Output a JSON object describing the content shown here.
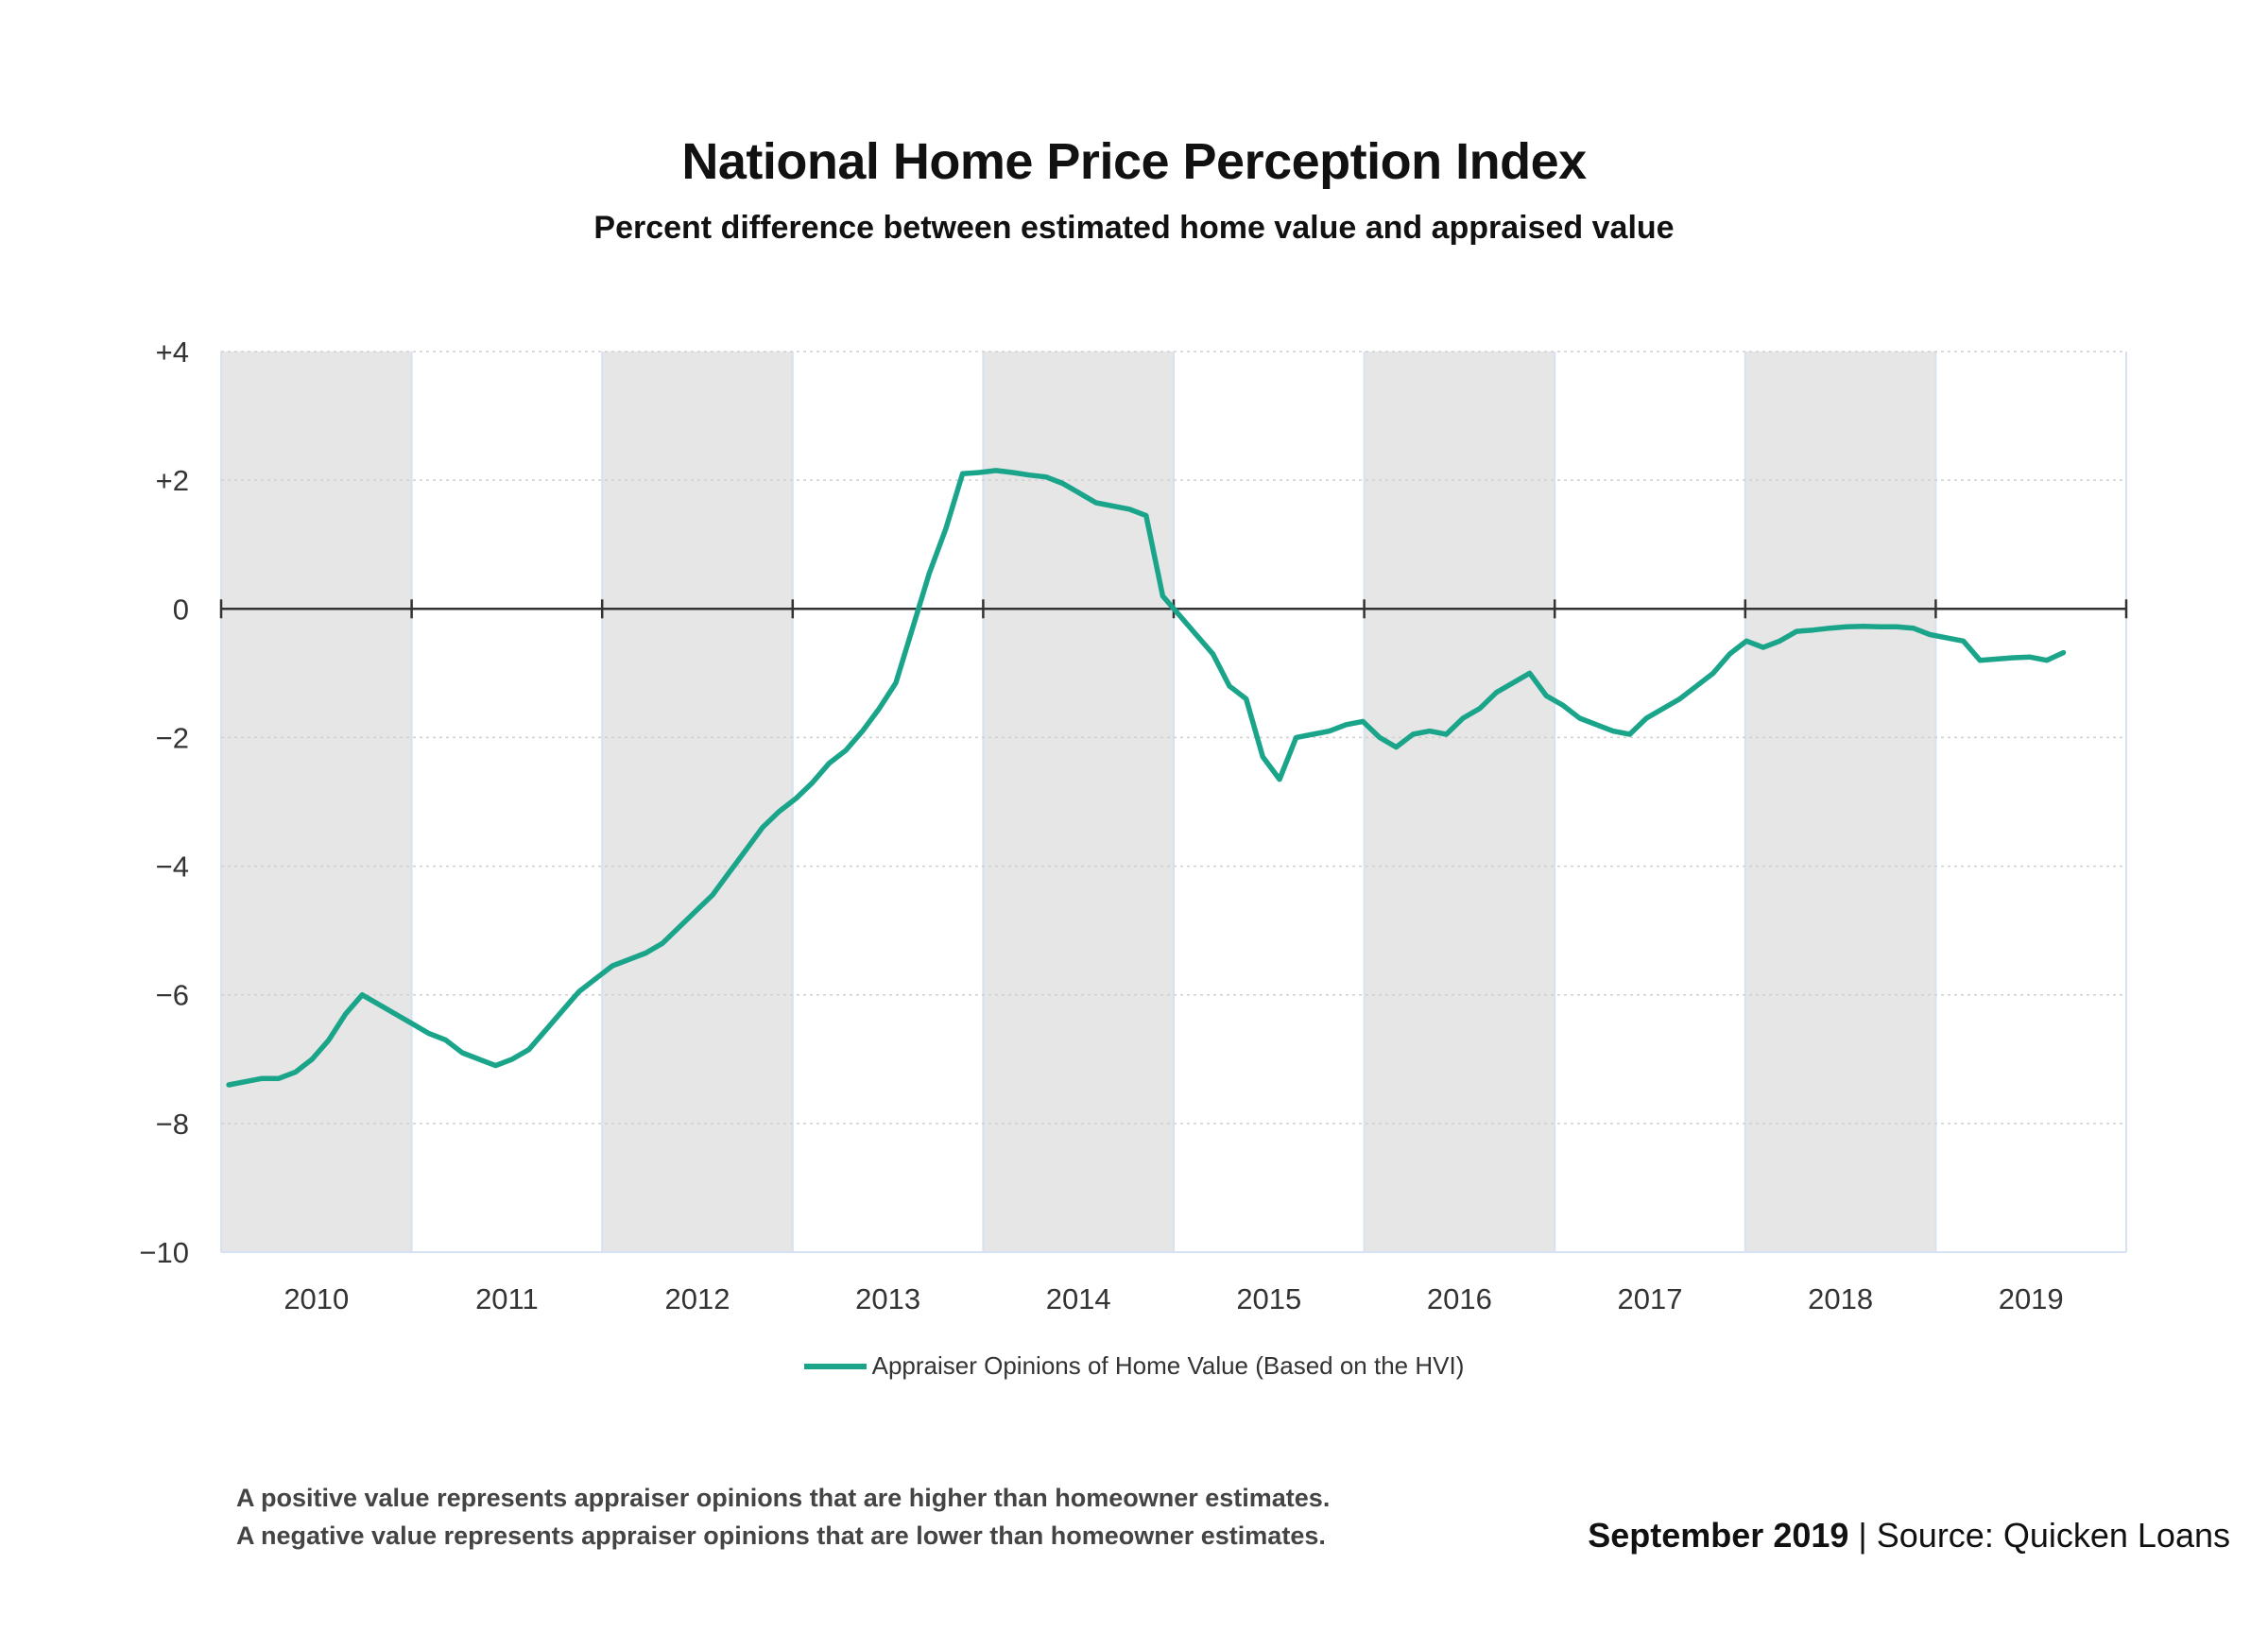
{
  "title": "National Home Price Perception Index",
  "subtitle": "Percent difference between estimated home value and appraised value",
  "legend_label": "Appraiser Opinions of Home Value (Based on the HVI)",
  "notes": [
    "A positive value represents appraiser opinions that are higher than homeowner estimates.",
    "A negative value represents appraiser opinions that are lower than homeowner estimates."
  ],
  "footer": {
    "date": "September 2019",
    "separator": " | ",
    "source": "Source: Quicken Loans"
  },
  "colors": {
    "line": "#1aa58a",
    "shade": "#e6e6e6",
    "zero_line": "#333333",
    "grid": "#cfcfcf"
  },
  "chart_data": {
    "type": "line",
    "title": "National Home Price Perception Index",
    "subtitle": "Percent difference between estimated home value and appraised value",
    "xlabel": "",
    "ylabel": "",
    "ylim": [
      -10,
      4
    ],
    "xlim": [
      2009.5,
      2019.5
    ],
    "y_ticks": [
      4,
      2,
      0,
      -2,
      -4,
      -6,
      -8,
      -10
    ],
    "y_tick_labels": [
      "+4",
      "+2",
      "0",
      "−2",
      "−4",
      "−6",
      "−8",
      "−10"
    ],
    "x_tick_labels": [
      "2010",
      "2011",
      "2012",
      "2013",
      "2014",
      "2015",
      "2016",
      "2017",
      "2018",
      "2019"
    ],
    "shaded_years": [
      "2010",
      "2012",
      "2014",
      "2016",
      "2018"
    ],
    "grid": true,
    "legend_position": "bottom",
    "series": [
      {
        "name": "Appraiser Opinions of Home Value (Based on the HVI)",
        "values": [
          -7.4,
          -7.35,
          -7.3,
          -7.3,
          -7.2,
          -7.0,
          -6.7,
          -6.3,
          -6.0,
          -6.15,
          -6.3,
          -6.45,
          -6.6,
          -6.7,
          -6.9,
          -7.0,
          -7.1,
          -7.0,
          -6.85,
          -6.55,
          -6.25,
          -5.95,
          -5.75,
          -5.55,
          -5.45,
          -5.35,
          -5.2,
          -4.95,
          -4.7,
          -4.45,
          -4.1,
          -3.75,
          -3.4,
          -3.15,
          -2.95,
          -2.7,
          -2.4,
          -2.2,
          -1.9,
          -1.55,
          -1.15,
          -0.3,
          0.55,
          1.25,
          2.1,
          2.12,
          2.15,
          2.12,
          2.08,
          2.05,
          1.95,
          1.8,
          1.65,
          1.6,
          1.55,
          1.45,
          0.2,
          -0.1,
          -0.4,
          -0.7,
          -1.2,
          -1.4,
          -2.3,
          -2.65,
          -2.0,
          -1.95,
          -1.9,
          -1.8,
          -1.75,
          -2.0,
          -2.15,
          -1.95,
          -1.9,
          -1.95,
          -1.7,
          -1.55,
          -1.3,
          -1.15,
          -1.0,
          -1.35,
          -1.5,
          -1.7,
          -1.8,
          -1.9,
          -1.95,
          -1.7,
          -1.55,
          -1.4,
          -1.2,
          -1.0,
          -0.7,
          -0.5,
          -0.6,
          -0.5,
          -0.35,
          -0.33,
          -0.3,
          -0.28,
          -0.27,
          -0.28,
          -0.28,
          -0.3,
          -0.4,
          -0.45,
          -0.5,
          -0.8,
          -0.78,
          -0.76,
          -0.75,
          -0.8,
          -0.68
        ]
      }
    ]
  }
}
